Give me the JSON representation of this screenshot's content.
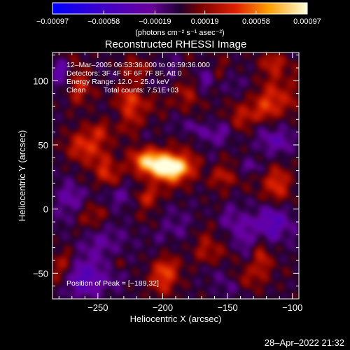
{
  "chart_data": {
    "type": "heatmap",
    "title": "Reconstructed RHESSI Image",
    "xlabel": "Heliocentric X (arcsec)",
    "ylabel": "Heliocentric Y (arcsec)",
    "xlim": [
      -285,
      -95
    ],
    "ylim": [
      -70,
      122
    ],
    "xticks": [
      -250,
      -200,
      -150,
      -100
    ],
    "xtick_labels": [
      "−250",
      "−200",
      "−150",
      "−100"
    ],
    "yticks": [
      -50,
      0,
      50,
      100
    ],
    "ytick_labels": [
      "−50",
      "0",
      "50",
      "100"
    ],
    "colorbar": {
      "range": [
        -0.00097,
        0.00097
      ],
      "ticks": [
        -0.00097,
        -0.00058,
        -0.00019,
        0.00019,
        0.00058,
        0.00097
      ],
      "tick_labels": [
        "−0.00097",
        "−0.00058",
        "−0.00019",
        "0.00019",
        "0.00058",
        "0.00097"
      ],
      "units": "(photons cm⁻² s⁻¹ asec⁻²)"
    },
    "annotations": {
      "time_range": "12–Mar–2005 06:53:36.000 to 06:59:36.000",
      "detectors": "Detectors: 3F 4F 5F 6F 7F 8F, Att 0",
      "energy": "Energy Range: 12.0 − 25.0 keV",
      "method": "Clean",
      "counts": "Total counts: 7.51E+03",
      "peak": "Position of Peak = [−189,32]"
    },
    "peak_position": [
      -189,
      32
    ],
    "sources": [
      {
        "x": -193,
        "y": 33,
        "amp": 1.0,
        "sx": 11,
        "sy": 7
      },
      {
        "x": -212,
        "y": 38,
        "amp": 0.72,
        "sx": 9,
        "sy": 7
      },
      {
        "x": -262,
        "y": 95,
        "amp": 0.45,
        "sx": 8,
        "sy": 10
      },
      {
        "x": -262,
        "y": 50,
        "amp": 0.4,
        "sx": 9,
        "sy": 8
      },
      {
        "x": -240,
        "y": 22,
        "amp": 0.28,
        "sx": 8,
        "sy": 8
      },
      {
        "x": -225,
        "y": 85,
        "amp": 0.3,
        "sx": 7,
        "sy": 14
      },
      {
        "x": -140,
        "y": 70,
        "amp": 0.4,
        "sx": 10,
        "sy": 9
      },
      {
        "x": -155,
        "y": 30,
        "amp": 0.3,
        "sx": 9,
        "sy": 9
      },
      {
        "x": -120,
        "y": 80,
        "amp": 0.4,
        "sx": 8,
        "sy": 10
      },
      {
        "x": -112,
        "y": 115,
        "amp": 0.5,
        "sx": 8,
        "sy": 6
      },
      {
        "x": -112,
        "y": 20,
        "amp": 0.45,
        "sx": 7,
        "sy": 10
      },
      {
        "x": -125,
        "y": -35,
        "amp": 0.45,
        "sx": 8,
        "sy": 8
      },
      {
        "x": -140,
        "y": -55,
        "amp": 0.35,
        "sx": 9,
        "sy": 7
      },
      {
        "x": -200,
        "y": -50,
        "amp": 0.35,
        "sx": 9,
        "sy": 8
      },
      {
        "x": -215,
        "y": 5,
        "amp": 0.3,
        "sx": 8,
        "sy": 8
      },
      {
        "x": -180,
        "y": 90,
        "amp": 0.25,
        "sx": 9,
        "sy": 9
      },
      {
        "x": -245,
        "y": -25,
        "amp": -0.35,
        "sx": 12,
        "sy": 12
      },
      {
        "x": -260,
        "y": -55,
        "amp": -0.4,
        "sx": 12,
        "sy": 10
      },
      {
        "x": -195,
        "y": -15,
        "amp": -0.25,
        "sx": 10,
        "sy": 10
      },
      {
        "x": -160,
        "y": 100,
        "amp": -0.3,
        "sx": 9,
        "sy": 9
      },
      {
        "x": -140,
        "y": -5,
        "amp": -0.3,
        "sx": 9,
        "sy": 9
      },
      {
        "x": -270,
        "y": 10,
        "amp": -0.3,
        "sx": 9,
        "sy": 10
      },
      {
        "x": -110,
        "y": 55,
        "amp": -0.3,
        "sx": 7,
        "sy": 9
      }
    ]
  },
  "footer": {
    "timestamp": "28–Apr–2022 21:32"
  }
}
